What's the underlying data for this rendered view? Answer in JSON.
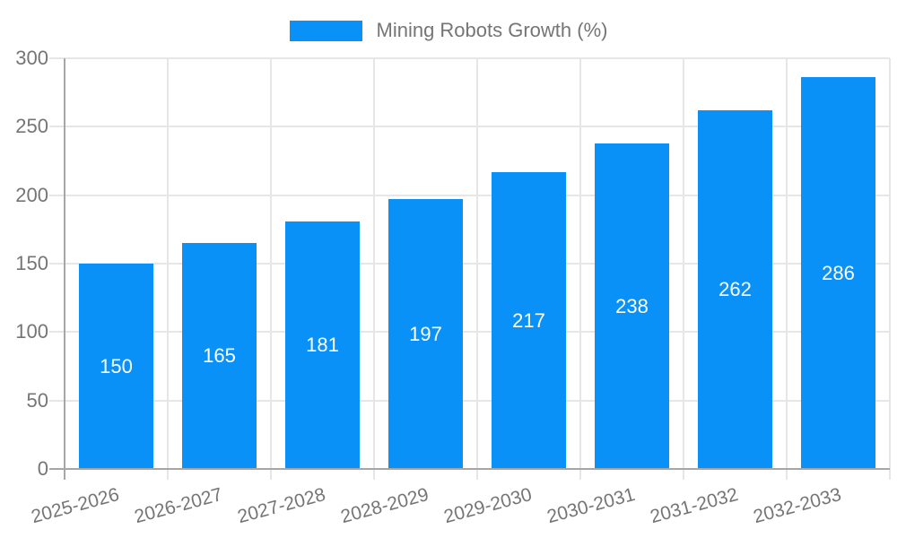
{
  "chart_data": {
    "type": "bar",
    "title": "",
    "legend": {
      "label": "Mining Robots Growth (%)",
      "position": "top-center"
    },
    "categories": [
      "2025-2026",
      "2026-2027",
      "2027-2028",
      "2028-2029",
      "2029-2030",
      "2030-2031",
      "2031-2032",
      "2032-2033"
    ],
    "series": [
      {
        "name": "Mining Robots Growth (%)",
        "values": [
          150,
          165,
          181,
          197,
          217,
          238,
          262,
          286
        ]
      }
    ],
    "value_labels": {
      "show": true,
      "position": "center-of-bar",
      "color": "#ffffff"
    },
    "xlabel": "",
    "ylabel": "",
    "ylim": [
      0,
      300
    ],
    "yticks": [
      0,
      50,
      100,
      150,
      200,
      250,
      300
    ],
    "x_tick_rotation_deg": -15,
    "grid": {
      "horizontal": true,
      "vertical": true
    },
    "colors": {
      "bar": "#0a91f8",
      "gridline": "#e6e6e6",
      "axis": "#a6a6a6",
      "tick_text": "#757575",
      "background": "#ffffff"
    }
  }
}
